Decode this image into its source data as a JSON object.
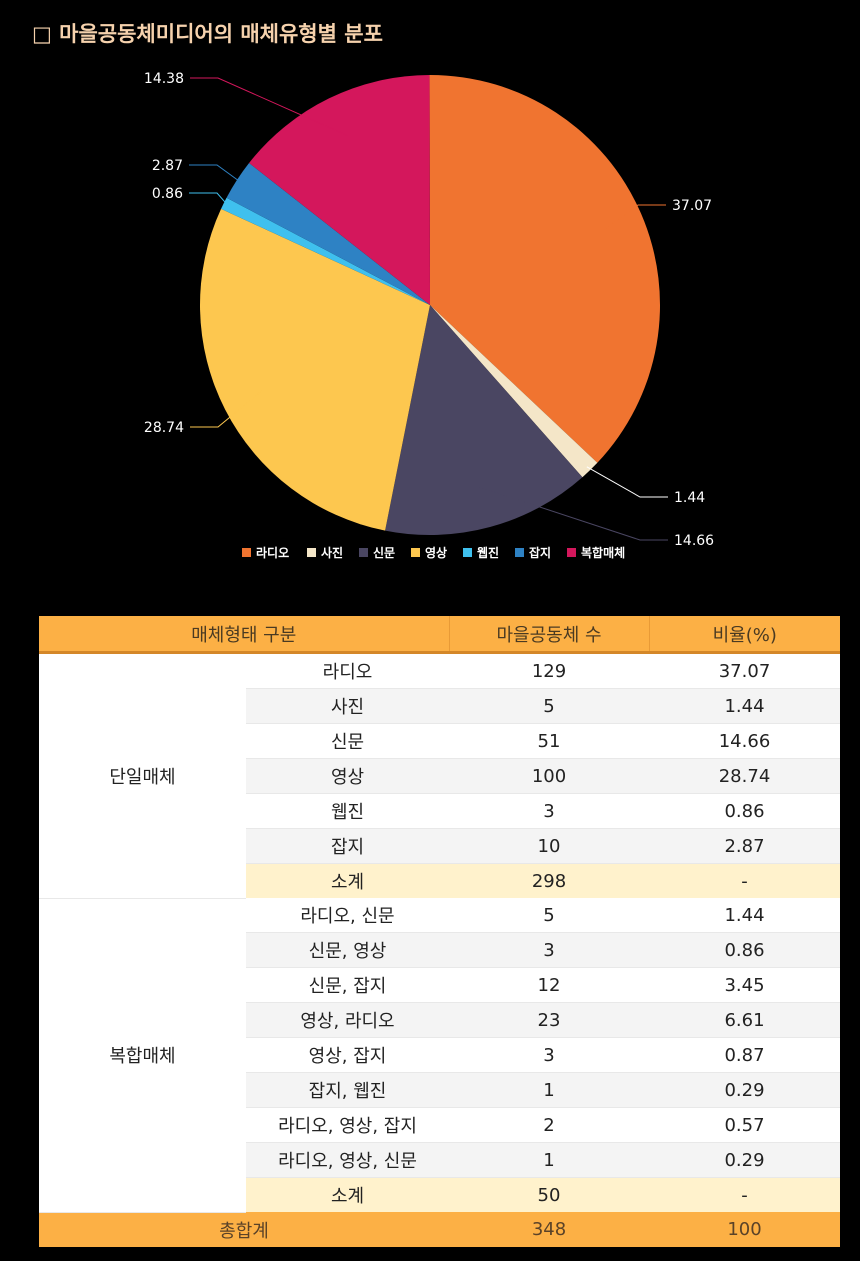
{
  "title": "□ 마을공동체미디어의 매체유형별 분포",
  "chart_data": {
    "type": "pie",
    "categories": [
      "라디오",
      "사진",
      "신문",
      "영상",
      "웹진",
      "잡지",
      "복합매체"
    ],
    "values": [
      37.07,
      1.44,
      14.66,
      28.74,
      0.86,
      2.87,
      14.38
    ],
    "labels": [
      "37.07",
      "1.44",
      "14.66",
      "28.74",
      "0.86",
      "2.87",
      "14.38"
    ],
    "colors": [
      "#f07430",
      "#f4e6c8",
      "#4a4662",
      "#fdc74f",
      "#3fc0ee",
      "#2e82c4",
      "#d4175c"
    ],
    "legend_position": "bottom"
  },
  "table": {
    "headers": [
      "매체형태 구분",
      "마을공동체 수",
      "비율(%)"
    ],
    "groups": [
      {
        "name": "단일매체",
        "rows": [
          {
            "type": "라디오",
            "count": "129",
            "ratio": "37.07"
          },
          {
            "type": "사진",
            "count": "5",
            "ratio": "1.44"
          },
          {
            "type": "신문",
            "count": "51",
            "ratio": "14.66"
          },
          {
            "type": "영상",
            "count": "100",
            "ratio": "28.74"
          },
          {
            "type": "웹진",
            "count": "3",
            "ratio": "0.86"
          },
          {
            "type": "잡지",
            "count": "10",
            "ratio": "2.87"
          }
        ],
        "subtotal": {
          "label": "소계",
          "count": "298",
          "ratio": "-"
        }
      },
      {
        "name": "복합매체",
        "rows": [
          {
            "type": "라디오, 신문",
            "count": "5",
            "ratio": "1.44"
          },
          {
            "type": "신문, 영상",
            "count": "3",
            "ratio": "0.86"
          },
          {
            "type": "신문, 잡지",
            "count": "12",
            "ratio": "3.45"
          },
          {
            "type": "영상, 라디오",
            "count": "23",
            "ratio": "6.61"
          },
          {
            "type": "영상, 잡지",
            "count": "3",
            "ratio": "0.87"
          },
          {
            "type": "잡지, 웹진",
            "count": "1",
            "ratio": "0.29"
          },
          {
            "type": "라디오, 영상, 잡지",
            "count": "2",
            "ratio": "0.57"
          },
          {
            "type": "라디오, 영상, 신문",
            "count": "1",
            "ratio": "0.29"
          }
        ],
        "subtotal": {
          "label": "소계",
          "count": "50",
          "ratio": "-"
        }
      }
    ],
    "total": {
      "label": "총합계",
      "count": "348",
      "ratio": "100"
    }
  }
}
